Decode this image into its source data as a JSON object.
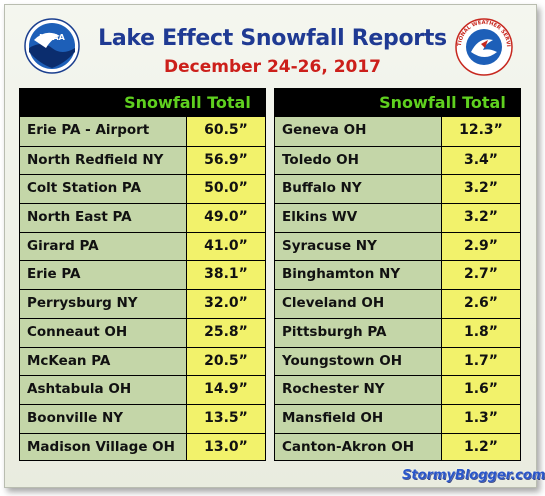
{
  "header": {
    "title": "Lake Effect Snowfall Reports",
    "subtitle": "December 24-26, 2017",
    "title_color": "#1f3a93",
    "subtitle_color": "#cc1f1a"
  },
  "logos": {
    "left": {
      "icon": "noaa-logo-icon",
      "text": "NOAA"
    },
    "right": {
      "icon": "nws-logo-icon",
      "text": "NATIONAL WEATHER SERVICE"
    }
  },
  "left_table": {
    "header": "Snowfall Total",
    "rows": [
      {
        "location": "Erie PA - Airport",
        "value": "60.5”"
      },
      {
        "location": "North Redfield NY",
        "value": "56.9”"
      },
      {
        "location": "Colt Station PA",
        "value": "50.0”"
      },
      {
        "location": "North East PA",
        "value": "49.0”"
      },
      {
        "location": "Girard PA",
        "value": "41.0”"
      },
      {
        "location": "Erie PA",
        "value": "38.1”"
      },
      {
        "location": "Perrysburg NY",
        "value": "32.0”"
      },
      {
        "location": "Conneaut OH",
        "value": "25.8”"
      },
      {
        "location": "McKean PA",
        "value": "20.5”"
      },
      {
        "location": "Ashtabula OH",
        "value": "14.9”"
      },
      {
        "location": "Boonville NY",
        "value": "13.5”"
      },
      {
        "location": "Madison Village OH",
        "value": "13.0”"
      }
    ]
  },
  "right_table": {
    "header": "Snowfall Total",
    "rows": [
      {
        "location": "Geneva OH",
        "value": "12.3”"
      },
      {
        "location": "Toledo OH",
        "value": "3.4”"
      },
      {
        "location": "Buffalo NY",
        "value": "3.2”"
      },
      {
        "location": "Elkins WV",
        "value": "3.2”"
      },
      {
        "location": "Syracuse NY",
        "value": "2.9”"
      },
      {
        "location": "Binghamton NY",
        "value": "2.7”"
      },
      {
        "location": "Cleveland OH",
        "value": "2.6”"
      },
      {
        "location": "Pittsburgh PA",
        "value": "1.8”"
      },
      {
        "location": "Youngstown OH",
        "value": "1.7”"
      },
      {
        "location": "Rochester NY",
        "value": "1.6”"
      },
      {
        "location": "Mansfield OH",
        "value": "1.3”"
      },
      {
        "location": "Canton-Akron OH",
        "value": "1.2”"
      }
    ]
  },
  "colors": {
    "header_text": "#5fd01f",
    "name_cell": "#c4d6a8",
    "value_cell": "#f2f26b"
  },
  "watermark": "StormyBlogger.com"
}
